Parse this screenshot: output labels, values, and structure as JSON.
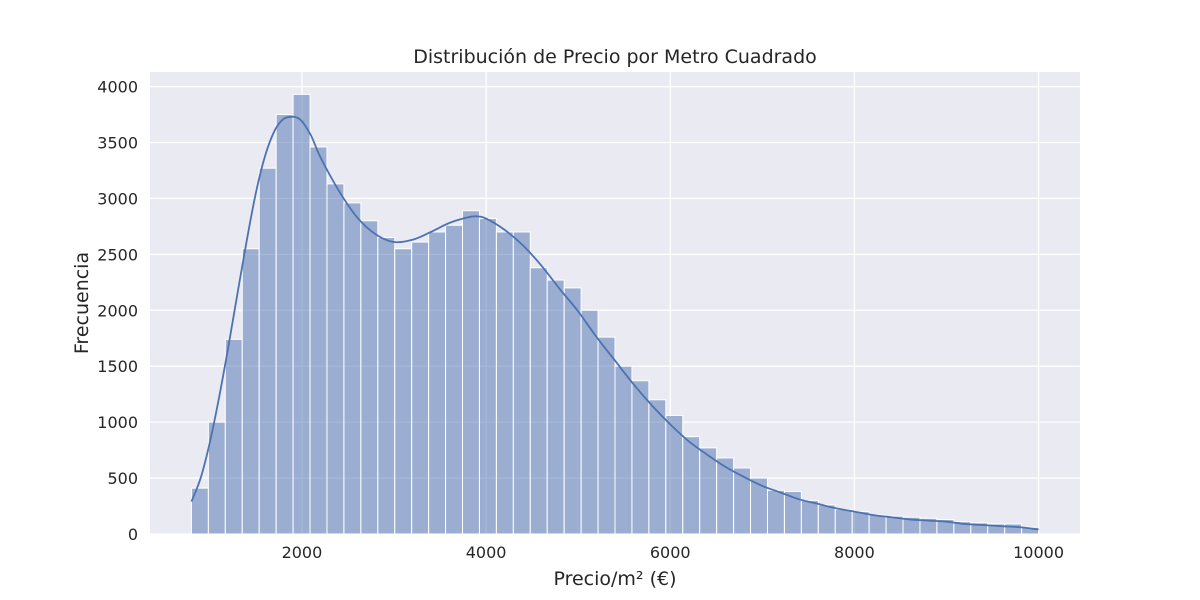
{
  "chart_data": {
    "type": "histogram",
    "title": "Distribución de Precio por Metro Cuadrado",
    "xlabel": "Precio/m² (€)",
    "ylabel": "Frecuencia",
    "xlim": [
      350,
      10450
    ],
    "ylim": [
      0,
      4130
    ],
    "xticks": [
      2000,
      4000,
      6000,
      8000,
      10000
    ],
    "yticks": [
      0,
      500,
      1000,
      1500,
      2000,
      2500,
      3000,
      3500,
      4000
    ],
    "grid": true,
    "bin_start": 800,
    "bin_width": 184,
    "counts": [
      410,
      1000,
      1740,
      2550,
      3270,
      3750,
      3930,
      3460,
      3130,
      2960,
      2800,
      2650,
      2550,
      2610,
      2700,
      2760,
      2890,
      2820,
      2700,
      2700,
      2380,
      2270,
      2200,
      2000,
      1760,
      1500,
      1370,
      1200,
      1060,
      870,
      770,
      680,
      590,
      500,
      390,
      380,
      300,
      260,
      220,
      200,
      170,
      160,
      150,
      140,
      130,
      110,
      100,
      90,
      90,
      60
    ],
    "kde": {
      "x": [
        800,
        900,
        1000,
        1100,
        1200,
        1300,
        1400,
        1500,
        1600,
        1700,
        1800,
        1900,
        1950,
        2000,
        2100,
        2200,
        2400,
        2600,
        2800,
        3000,
        3200,
        3400,
        3600,
        3800,
        3900,
        4000,
        4200,
        4400,
        4600,
        4800,
        5000,
        5200,
        5400,
        5600,
        5800,
        6000,
        6200,
        6400,
        6600,
        6800,
        7000,
        7200,
        7400,
        7600,
        7800,
        8000,
        8200,
        8400,
        8600,
        8800,
        9000,
        9200,
        9400,
        9600,
        9800,
        10000
      ],
      "y": [
        290,
        500,
        820,
        1220,
        1670,
        2150,
        2620,
        3050,
        3380,
        3600,
        3710,
        3730,
        3720,
        3690,
        3560,
        3370,
        3070,
        2830,
        2680,
        2610,
        2630,
        2700,
        2780,
        2830,
        2840,
        2820,
        2720,
        2580,
        2400,
        2190,
        1990,
        1760,
        1550,
        1340,
        1150,
        980,
        830,
        710,
        600,
        510,
        430,
        370,
        310,
        270,
        230,
        200,
        170,
        150,
        130,
        120,
        110,
        90,
        80,
        70,
        60,
        40
      ]
    },
    "colors": {
      "background": "#eaeaf2",
      "bar_fill": "#4c72b0",
      "bar_opacity": 0.5,
      "line": "#4c72b0",
      "grid": "#ffffff"
    }
  }
}
